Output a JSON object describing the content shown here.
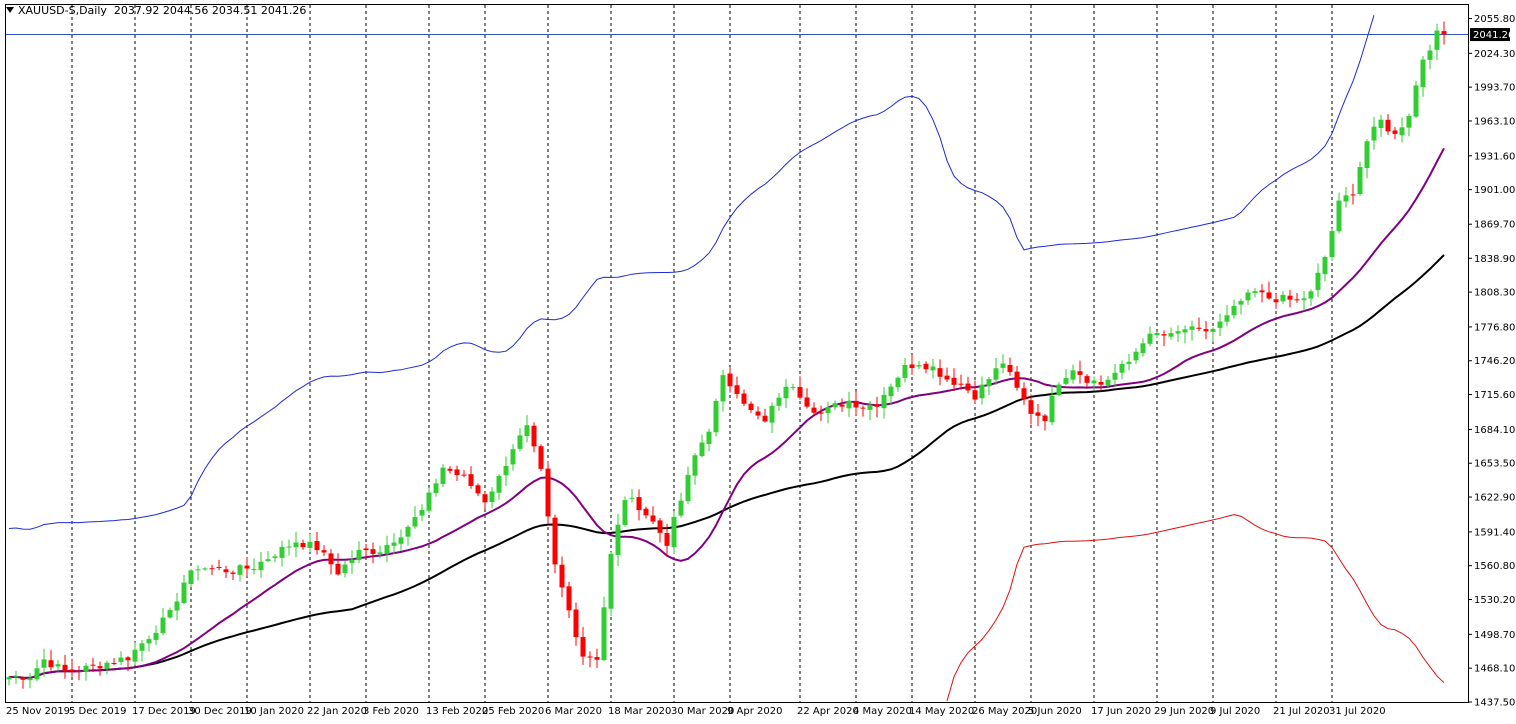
{
  "header": {
    "symbol": "XAUUSD-S,Daily",
    "ohlc": "2037.92 2044.56 2034.51 2041.26"
  },
  "colors": {
    "background": "#ffffff",
    "bull": "#32cd32",
    "bear": "#ff0000",
    "ma20": "#800080",
    "ma50": "#000000",
    "band_upper": "#1e2bd6",
    "band_lower": "#e01010",
    "price_line": "#3355cc",
    "grid": "#000000"
  },
  "chart_data": {
    "type": "candlestick",
    "symbol": "XAUUSD-S",
    "timeframe": "Daily",
    "current_price": 2041.26,
    "price_label": "2041.26",
    "ylim": [
      1437.5,
      2068.0
    ],
    "grid": "vertical dashed at date labels",
    "y_ticks": [
      "2055.80",
      "2024.30",
      "1993.70",
      "1963.10",
      "1931.60",
      "1901.00",
      "1869.70",
      "1838.90",
      "1808.30",
      "1776.80",
      "1746.20",
      "1715.60",
      "1684.10",
      "1653.50",
      "1622.90",
      "1591.40",
      "1560.80",
      "1530.20",
      "1498.70",
      "1468.10",
      "1437.50"
    ],
    "x_labels": [
      "25 Nov 2019",
      "5 Dec 2019",
      "17 Dec 2019",
      "30 Dec 2019",
      "10 Jan 2020",
      "22 Jan 2020",
      "3 Feb 2020",
      "13 Feb 2020",
      "25 Feb 2020",
      "6 Mar 2020",
      "18 Mar 2020",
      "30 Mar 2020",
      "9 Apr 2020",
      "22 Apr 2020",
      "4 May 2020",
      "14 May 2020",
      "26 May 2020",
      "5 Jun 2020",
      "17 Jun 2020",
      "29 Jun 2020",
      "9 Jul 2020",
      "21 Jul 2020",
      "31 Jul 2020"
    ],
    "close_anchors": [
      [
        0,
        1460
      ],
      [
        3,
        1461
      ],
      [
        5,
        1476
      ],
      [
        8,
        1465
      ],
      [
        11,
        1468
      ],
      [
        14,
        1473
      ],
      [
        17,
        1478
      ],
      [
        20,
        1497
      ],
      [
        23,
        1517
      ],
      [
        25,
        1546
      ],
      [
        27,
        1560
      ],
      [
        29,
        1558
      ],
      [
        32,
        1556
      ],
      [
        35,
        1560
      ],
      [
        38,
        1572
      ],
      [
        41,
        1583
      ],
      [
        44,
        1577
      ],
      [
        47,
        1555
      ],
      [
        50,
        1573
      ],
      [
        53,
        1575
      ],
      [
        56,
        1590
      ],
      [
        59,
        1610
      ],
      [
        62,
        1650
      ],
      [
        65,
        1640
      ],
      [
        68,
        1620
      ],
      [
        70,
        1640
      ],
      [
        72,
        1668
      ],
      [
        74,
        1685
      ],
      [
        76,
        1645
      ],
      [
        78,
        1560
      ],
      [
        80,
        1520
      ],
      [
        82,
        1480
      ],
      [
        84,
        1478
      ],
      [
        86,
        1570
      ],
      [
        88,
        1622
      ],
      [
        90,
        1615
      ],
      [
        92,
        1600
      ],
      [
        94,
        1582
      ],
      [
        96,
        1620
      ],
      [
        98,
        1660
      ],
      [
        100,
        1685
      ],
      [
        102,
        1730
      ],
      [
        104,
        1720
      ],
      [
        106,
        1700
      ],
      [
        108,
        1690
      ],
      [
        110,
        1715
      ],
      [
        112,
        1725
      ],
      [
        114,
        1708
      ],
      [
        116,
        1698
      ],
      [
        118,
        1705
      ],
      [
        120,
        1710
      ],
      [
        122,
        1705
      ],
      [
        124,
        1708
      ],
      [
        126,
        1725
      ],
      [
        128,
        1740
      ],
      [
        130,
        1745
      ],
      [
        132,
        1740
      ],
      [
        134,
        1730
      ],
      [
        136,
        1725
      ],
      [
        138,
        1715
      ],
      [
        140,
        1730
      ],
      [
        142,
        1745
      ],
      [
        144,
        1720
      ],
      [
        146,
        1700
      ],
      [
        148,
        1695
      ],
      [
        150,
        1728
      ],
      [
        152,
        1740
      ],
      [
        154,
        1730
      ],
      [
        156,
        1725
      ],
      [
        158,
        1735
      ],
      [
        160,
        1745
      ],
      [
        162,
        1765
      ],
      [
        164,
        1770
      ],
      [
        166,
        1768
      ],
      [
        168,
        1775
      ],
      [
        170,
        1772
      ],
      [
        172,
        1775
      ],
      [
        174,
        1785
      ],
      [
        176,
        1800
      ],
      [
        178,
        1808
      ],
      [
        180,
        1803
      ],
      [
        182,
        1802
      ],
      [
        184,
        1800
      ],
      [
        186,
        1807
      ],
      [
        188,
        1840
      ],
      [
        190,
        1888
      ],
      [
        192,
        1900
      ],
      [
        194,
        1945
      ],
      [
        196,
        1963
      ],
      [
        198,
        1950
      ],
      [
        200,
        1970
      ],
      [
        202,
        2020
      ],
      [
        204,
        2041.26
      ]
    ],
    "n_days": 206,
    "x_label_day_index": [
      0,
      9,
      18,
      26,
      34,
      43,
      51,
      60,
      68,
      77,
      86,
      95,
      103,
      113,
      121,
      129,
      138,
      146,
      155,
      164,
      172,
      181,
      189
    ],
    "series": [
      {
        "name": "MA20",
        "color": "#800080"
      },
      {
        "name": "MA50",
        "color": "#000000"
      },
      {
        "name": "Band upper",
        "color": "#1e2bd6"
      },
      {
        "name": "Band lower",
        "color": "#e01010"
      }
    ]
  }
}
